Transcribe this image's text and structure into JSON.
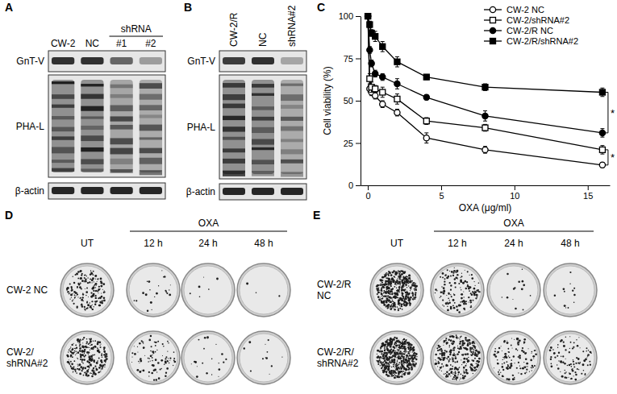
{
  "figure": {
    "panel_labels": [
      "A",
      "B",
      "C",
      "D",
      "E"
    ]
  },
  "panels": {
    "A": {
      "lanes": [
        "CW-2",
        "NC",
        "#1",
        "#2"
      ],
      "groups": [
        {
          "label": "shRNA",
          "from": 2,
          "to": 3
        }
      ],
      "rows": [
        "GnT-V",
        "PHA-L",
        "β-actin"
      ]
    },
    "B": {
      "lanes": [
        "CW-2/R",
        "NC",
        "shRNA#2"
      ],
      "rows": [
        "GnT-V",
        "PHA-L",
        "β-actin"
      ]
    },
    "D": {
      "columns": [
        "UT",
        "12 h",
        "24 h",
        "48 h"
      ],
      "groups": [
        {
          "label": "OXA",
          "from": 1,
          "to": 3
        }
      ],
      "rows": [
        [
          "CW-2 NC"
        ],
        [
          "CW-2/",
          "shRNA#2"
        ]
      ]
    },
    "E": {
      "columns": [
        "UT",
        "12 h",
        "24 h",
        "48 h"
      ],
      "groups": [
        {
          "label": "OXA",
          "from": 1,
          "to": 3
        }
      ],
      "rows": [
        [
          "CW-2/R",
          "NC"
        ],
        [
          "CW-2/R/",
          "shRNA#2"
        ]
      ]
    }
  },
  "chart_data": {
    "type": "line",
    "x_label": "OXA (μg/ml)",
    "y_label": "Cell viability (%)",
    "x": [
      0,
      0.125,
      0.25,
      0.5,
      1,
      2,
      4,
      8,
      16
    ],
    "xlim": [
      -0.5,
      16.5
    ],
    "xticks": [
      0,
      5,
      10,
      15
    ],
    "ylim": [
      0,
      100
    ],
    "yticks": [
      0,
      25,
      50,
      75,
      100
    ],
    "legend": "upper right",
    "series": [
      {
        "name": "CW-2 NC",
        "color": "#000000",
        "marker": "circle-open",
        "line_style": "solid",
        "values": [
          100,
          57,
          55,
          53,
          48,
          43,
          28,
          21,
          12
        ],
        "errors": [
          1,
          2,
          2,
          2,
          2,
          2,
          3,
          2,
          1.5
        ]
      },
      {
        "name": "CW-2/shRNA#2",
        "color": "#000000",
        "marker": "square-open",
        "line_style": "solid",
        "values": [
          100,
          63,
          58,
          57,
          55,
          51,
          38,
          34,
          21
        ],
        "errors": [
          1,
          3,
          3,
          2,
          3,
          3,
          2,
          2,
          2.5
        ]
      },
      {
        "name": "CW-2/R NC",
        "color": "#000000",
        "marker": "circle",
        "line_style": "solid",
        "values": [
          100,
          80,
          72,
          66,
          64,
          60,
          52,
          41,
          31
        ],
        "errors": [
          1,
          2,
          2,
          2,
          2,
          3,
          1.5,
          3,
          2.5
        ]
      },
      {
        "name": "CW-2/R/shRNA#2",
        "color": "#000000",
        "marker": "square",
        "line_style": "solid",
        "values": [
          100,
          95,
          90,
          88,
          82,
          73,
          64,
          58,
          55
        ],
        "errors": [
          1,
          2,
          2,
          3,
          3,
          3,
          1.5,
          2,
          2.5
        ]
      }
    ],
    "annotations": [
      {
        "text": "*",
        "series": [
          3,
          2
        ]
      },
      {
        "text": "*",
        "series": [
          1,
          0
        ]
      }
    ]
  }
}
